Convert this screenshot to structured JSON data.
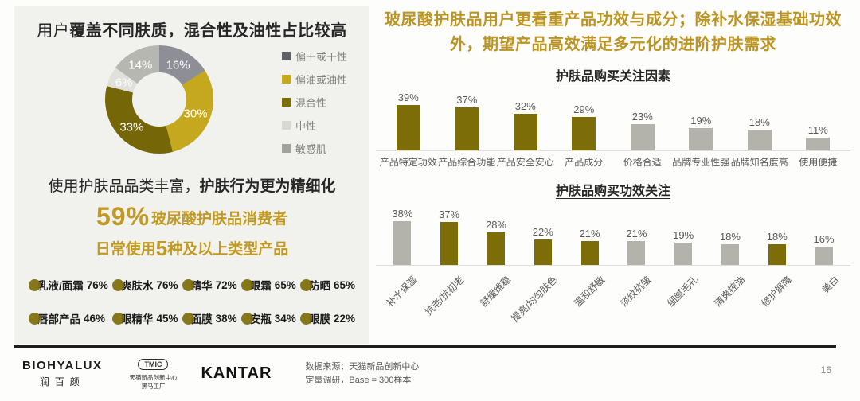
{
  "slide": {
    "page_number": "16",
    "colors": {
      "gold": "#bb9422",
      "olive": "#7d6d08",
      "yellow": "#c6a81f",
      "bar_gray": "#b3b3ac",
      "panel_bg": "#f1f1ee"
    }
  },
  "left": {
    "title": {
      "normal": "用户",
      "bold": "覆盖不同肤质，混合性及油性占比较高"
    },
    "subtitle": {
      "normal": "使用护肤品品类丰富，",
      "bold": "护肤行为更为精细化"
    },
    "highlight_line1": {
      "big": "59%",
      "rest": "玻尿酸护肤品消费者"
    },
    "highlight_line2": {
      "pre": "日常使用",
      "big": "5",
      "rest": "种及以上类型产品"
    },
    "products": [
      {
        "label": "乳液/面霜",
        "value": "76%"
      },
      {
        "label": "爽肤水",
        "value": "76%"
      },
      {
        "label": "精华",
        "value": "72%"
      },
      {
        "label": "眼霜",
        "value": "65%"
      },
      {
        "label": "防晒",
        "value": "65%"
      },
      {
        "label": "唇部产品",
        "value": "46%"
      },
      {
        "label": "眼精华",
        "value": "45%"
      },
      {
        "label": "面膜",
        "value": "38%"
      },
      {
        "label": "安瓶",
        "value": "34%"
      },
      {
        "label": "眼膜",
        "value": "22%"
      }
    ]
  },
  "right": {
    "heading": "玻尿酸护肤品用户更看重产品功效与成分；除补水保湿基础功效外，期望产品高效满足多元化的进阶护肤需求"
  },
  "footer": {
    "biohyalux_en": "BIOHYALUX",
    "biohyalux_cn": "润百颜",
    "tmic_label": "TMIC",
    "tmic_line1": "天猫新品创新中心",
    "tmic_line2": "黑马工厂",
    "kantar": "KANTAR",
    "source_line1": "数据来源：天猫新品创新中心",
    "source_line2": "定量调研，Base = 300样本"
  },
  "chart_data": [
    {
      "type": "pie",
      "subtype": "donut",
      "title": "用户覆盖不同肤质，混合性及油性占比较高",
      "labels": [
        "偏干或干性",
        "偏油或油性",
        "混合性",
        "中性",
        "敏感肌"
      ],
      "values": [
        16,
        30,
        33,
        6,
        14
      ],
      "slice_colors": [
        "#8e8e97",
        "#c6a81f",
        "#756708",
        "#e0e0dc",
        "#b7b7b1"
      ],
      "legend_colors": [
        "#5f5f68",
        "#c6a81f",
        "#7d6d08",
        "#d8d8d3",
        "#a3a39d"
      ],
      "legend_position": "right",
      "start_angle_deg": 0,
      "direction": "clockwise"
    },
    {
      "type": "bar",
      "title": "护肤品购买关注因素",
      "categories": [
        "产品特定功效",
        "产品综合功能",
        "产品安全安心",
        "产品成分",
        "价格合适",
        "品牌专业性强",
        "品牌知名度高",
        "使用便捷"
      ],
      "values": [
        39,
        37,
        32,
        29,
        23,
        19,
        18,
        11
      ],
      "highlight": [
        true,
        true,
        true,
        true,
        false,
        false,
        false,
        false
      ],
      "value_label_format": "percent",
      "ylim": [
        0,
        45
      ],
      "grid": false,
      "legend_position": "none"
    },
    {
      "type": "bar",
      "title": "护肤品购买功效关注",
      "categories": [
        "补水保湿",
        "抗老/抗初老",
        "舒缓维稳",
        "提亮/均匀肤色",
        "温和舒敏",
        "淡纹抗皱",
        "细腻毛孔",
        "清爽控油",
        "修护屏障",
        "美白"
      ],
      "values": [
        38,
        37,
        28,
        22,
        21,
        21,
        19,
        18,
        18,
        16
      ],
      "highlight": [
        false,
        true,
        true,
        true,
        true,
        false,
        false,
        false,
        true,
        false
      ],
      "value_label_format": "percent",
      "label_rotation_deg": -45,
      "ylim": [
        0,
        45
      ],
      "grid": false,
      "legend_position": "none"
    }
  ]
}
